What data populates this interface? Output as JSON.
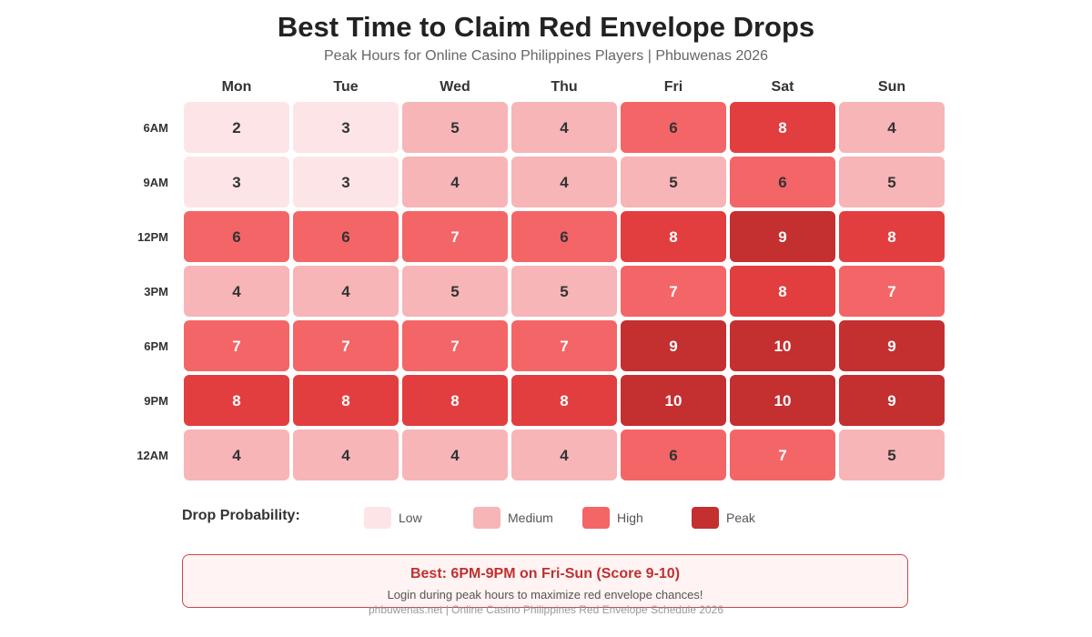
{
  "header": {
    "title": "Best Time to Claim Red Envelope Drops",
    "subtitle": "Peak Hours for Online Casino Philippines Players | Phbuwenas 2026"
  },
  "chart_data": {
    "type": "heatmap",
    "title": "Best Time to Claim Red Envelope Drops",
    "subtitle": "Peak Hours for Online Casino Philippines Players | Phbuwenas 2026",
    "columns": [
      "Mon",
      "Tue",
      "Wed",
      "Thu",
      "Fri",
      "Sat",
      "Sun"
    ],
    "rows": [
      "6AM",
      "9AM",
      "12PM",
      "3PM",
      "6PM",
      "9PM",
      "12AM"
    ],
    "values": [
      [
        2,
        3,
        5,
        4,
        6,
        8,
        4
      ],
      [
        3,
        3,
        4,
        4,
        5,
        6,
        5
      ],
      [
        6,
        6,
        7,
        6,
        8,
        9,
        8
      ],
      [
        4,
        4,
        5,
        5,
        7,
        8,
        7
      ],
      [
        7,
        7,
        7,
        7,
        9,
        10,
        9
      ],
      [
        8,
        8,
        8,
        8,
        10,
        10,
        9
      ],
      [
        4,
        4,
        4,
        4,
        6,
        7,
        5
      ]
    ],
    "value_colors": {
      "2": "#fde5e7",
      "3": "#fde5e7",
      "4": "#f7b5b7",
      "5": "#f7b5b7",
      "6": "#f46567",
      "7": "#f46567",
      "8": "#e23e3f",
      "9": "#c42f30",
      "10": "#c42f30"
    },
    "text_colors": {
      "dark": "#333333",
      "light": "#ffffff"
    },
    "light_text_min_value": 7
  },
  "legend": {
    "title": "Drop Probability:",
    "items": [
      {
        "label": "Low",
        "color": "#fde5e7"
      },
      {
        "label": "Medium",
        "color": "#f7b5b7"
      },
      {
        "label": "High",
        "color": "#f46567"
      },
      {
        "label": "Peak",
        "color": "#c42f30"
      }
    ]
  },
  "callout": {
    "title": "Best: 6PM-9PM on Fri-Sun (Score 9-10)",
    "text": "Login during peak hours to maximize red envelope chances!"
  },
  "footer": {
    "text": "phbuwenas.net | Online Casino Philippines Red Envelope Schedule 2026"
  }
}
